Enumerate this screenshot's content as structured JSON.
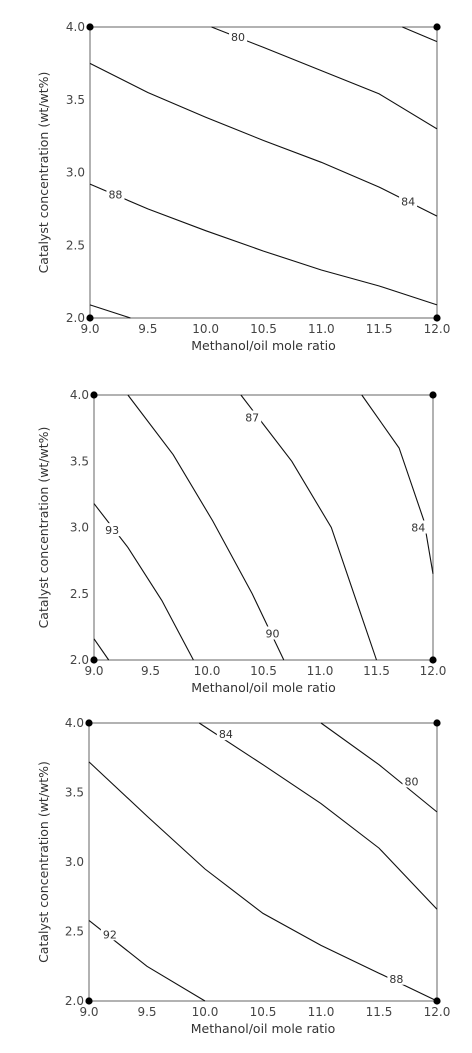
{
  "chart_data": [
    {
      "type": "contour",
      "xlabel": "Methanol/oil mole ratio",
      "ylabel": "Catalyst concentration (wt/wt%)",
      "xlim": [
        9.0,
        12.0
      ],
      "ylim": [
        2.0,
        4.0
      ],
      "x_ticks": [
        "9.0",
        "9.5",
        "10.0",
        "10.5",
        "11.0",
        "11.5",
        "12.0"
      ],
      "y_ticks": [
        "2.0",
        "2.5",
        "3.0",
        "3.5",
        "4.0"
      ],
      "design_points": [
        [
          9.0,
          2.0
        ],
        [
          12.0,
          2.0
        ],
        [
          9.0,
          4.0
        ],
        [
          12.0,
          4.0
        ]
      ],
      "contours": [
        {
          "level": "80",
          "points": [
            [
              10.05,
              4.0
            ],
            [
              10.5,
              3.86
            ],
            [
              11.0,
              3.7
            ],
            [
              11.5,
              3.54
            ],
            [
              12.0,
              3.3
            ]
          ],
          "label_at": [
            10.28,
            3.93
          ]
        },
        {
          "level": "",
          "points": [
            [
              11.7,
              4.0
            ],
            [
              12.0,
              3.9
            ]
          ]
        },
        {
          "level": "84",
          "points": [
            [
              9.0,
              3.75
            ],
            [
              9.5,
              3.55
            ],
            [
              10.0,
              3.38
            ],
            [
              10.5,
              3.22
            ],
            [
              11.0,
              3.07
            ],
            [
              11.5,
              2.9
            ],
            [
              12.0,
              2.7
            ]
          ],
          "label_at": [
            11.75,
            2.8
          ]
        },
        {
          "level": "88",
          "points": [
            [
              9.0,
              2.92
            ],
            [
              9.5,
              2.75
            ],
            [
              10.0,
              2.6
            ],
            [
              10.5,
              2.46
            ],
            [
              11.0,
              2.33
            ],
            [
              11.5,
              2.22
            ],
            [
              12.0,
              2.09
            ]
          ],
          "label_at": [
            9.22,
            2.85
          ]
        },
        {
          "level": "",
          "points": [
            [
              9.0,
              2.09
            ],
            [
              9.35,
              2.0
            ]
          ]
        }
      ]
    },
    {
      "type": "contour",
      "xlabel": "Methanol/oil mole ratio",
      "ylabel": "Catalyst concentration (wt/wt%)",
      "xlim": [
        9.0,
        12.0
      ],
      "ylim": [
        2.0,
        4.0
      ],
      "x_ticks": [
        "9.0",
        "9.5",
        "10.0",
        "10.5",
        "11.0",
        "11.5",
        "12.0"
      ],
      "y_ticks": [
        "2.0",
        "2.5",
        "3.0",
        "3.5",
        "4.0"
      ],
      "design_points": [
        [
          9.0,
          2.0
        ],
        [
          12.0,
          2.0
        ],
        [
          9.0,
          4.0
        ],
        [
          12.0,
          4.0
        ]
      ],
      "contours": [
        {
          "level": "",
          "points": [
            [
              9.0,
              2.16
            ],
            [
              9.13,
              2.0
            ]
          ]
        },
        {
          "level": "93",
          "points": [
            [
              9.0,
              3.18
            ],
            [
              9.3,
              2.85
            ],
            [
              9.6,
              2.45
            ],
            [
              9.88,
              2.0
            ]
          ],
          "label_at": [
            9.16,
            2.98
          ]
        },
        {
          "level": "90",
          "points": [
            [
              9.3,
              4.0
            ],
            [
              9.7,
              3.55
            ],
            [
              10.05,
              3.05
            ],
            [
              10.4,
              2.5
            ],
            [
              10.68,
              2.0
            ]
          ],
          "label_at": [
            10.58,
            2.2
          ]
        },
        {
          "level": "87",
          "points": [
            [
              10.3,
              4.0
            ],
            [
              10.75,
              3.5
            ],
            [
              11.1,
              3.0
            ],
            [
              11.3,
              2.5
            ],
            [
              11.5,
              2.0
            ]
          ],
          "label_at": [
            10.4,
            3.83
          ]
        },
        {
          "level": "84",
          "points": [
            [
              11.37,
              4.0
            ],
            [
              11.7,
              3.6
            ],
            [
              11.92,
              3.05
            ],
            [
              12.0,
              2.65
            ]
          ],
          "label_at": [
            11.87,
            3.0
          ]
        }
      ]
    },
    {
      "type": "contour",
      "xlabel": "Methanol/oil mole ratio",
      "ylabel": "Catalyst concentration (wt/wt%)",
      "xlim": [
        9.0,
        12.0
      ],
      "ylim": [
        2.0,
        4.0
      ],
      "x_ticks": [
        "9.0",
        "9.5",
        "10.0",
        "10.5",
        "11.0",
        "11.5",
        "12.0"
      ],
      "y_ticks": [
        "2.0",
        "2.5",
        "3.0",
        "3.5",
        "4.0"
      ],
      "design_points": [
        [
          9.0,
          2.0
        ],
        [
          12.0,
          2.0
        ],
        [
          9.0,
          4.0
        ],
        [
          12.0,
          4.0
        ]
      ],
      "contours": [
        {
          "level": "84",
          "points": [
            [
              9.95,
              4.0
            ],
            [
              10.5,
              3.7
            ],
            [
              11.0,
              3.42
            ],
            [
              11.5,
              3.1
            ],
            [
              12.0,
              2.66
            ]
          ],
          "label_at": [
            10.18,
            3.92
          ]
        },
        {
          "level": "80",
          "points": [
            [
              11.0,
              4.0
            ],
            [
              11.5,
              3.7
            ],
            [
              12.0,
              3.36
            ]
          ],
          "label_at": [
            11.78,
            3.58
          ]
        },
        {
          "level": "",
          "points": [
            [
              9.0,
              3.72
            ],
            [
              9.5,
              3.33
            ],
            [
              10.0,
              2.95
            ],
            [
              10.5,
              2.63
            ],
            [
              11.0,
              2.4
            ],
            [
              11.5,
              2.2
            ],
            [
              12.0,
              2.0
            ]
          ]
        },
        {
          "level": "88",
          "points": [
            [
              11.5,
              2.2
            ]
          ],
          "label_at": [
            11.65,
            2.16
          ]
        },
        {
          "level": "92",
          "points": [
            [
              9.0,
              2.58
            ],
            [
              9.5,
              2.25
            ],
            [
              10.0,
              2.0
            ]
          ],
          "label_at": [
            9.18,
            2.48
          ]
        }
      ]
    }
  ]
}
